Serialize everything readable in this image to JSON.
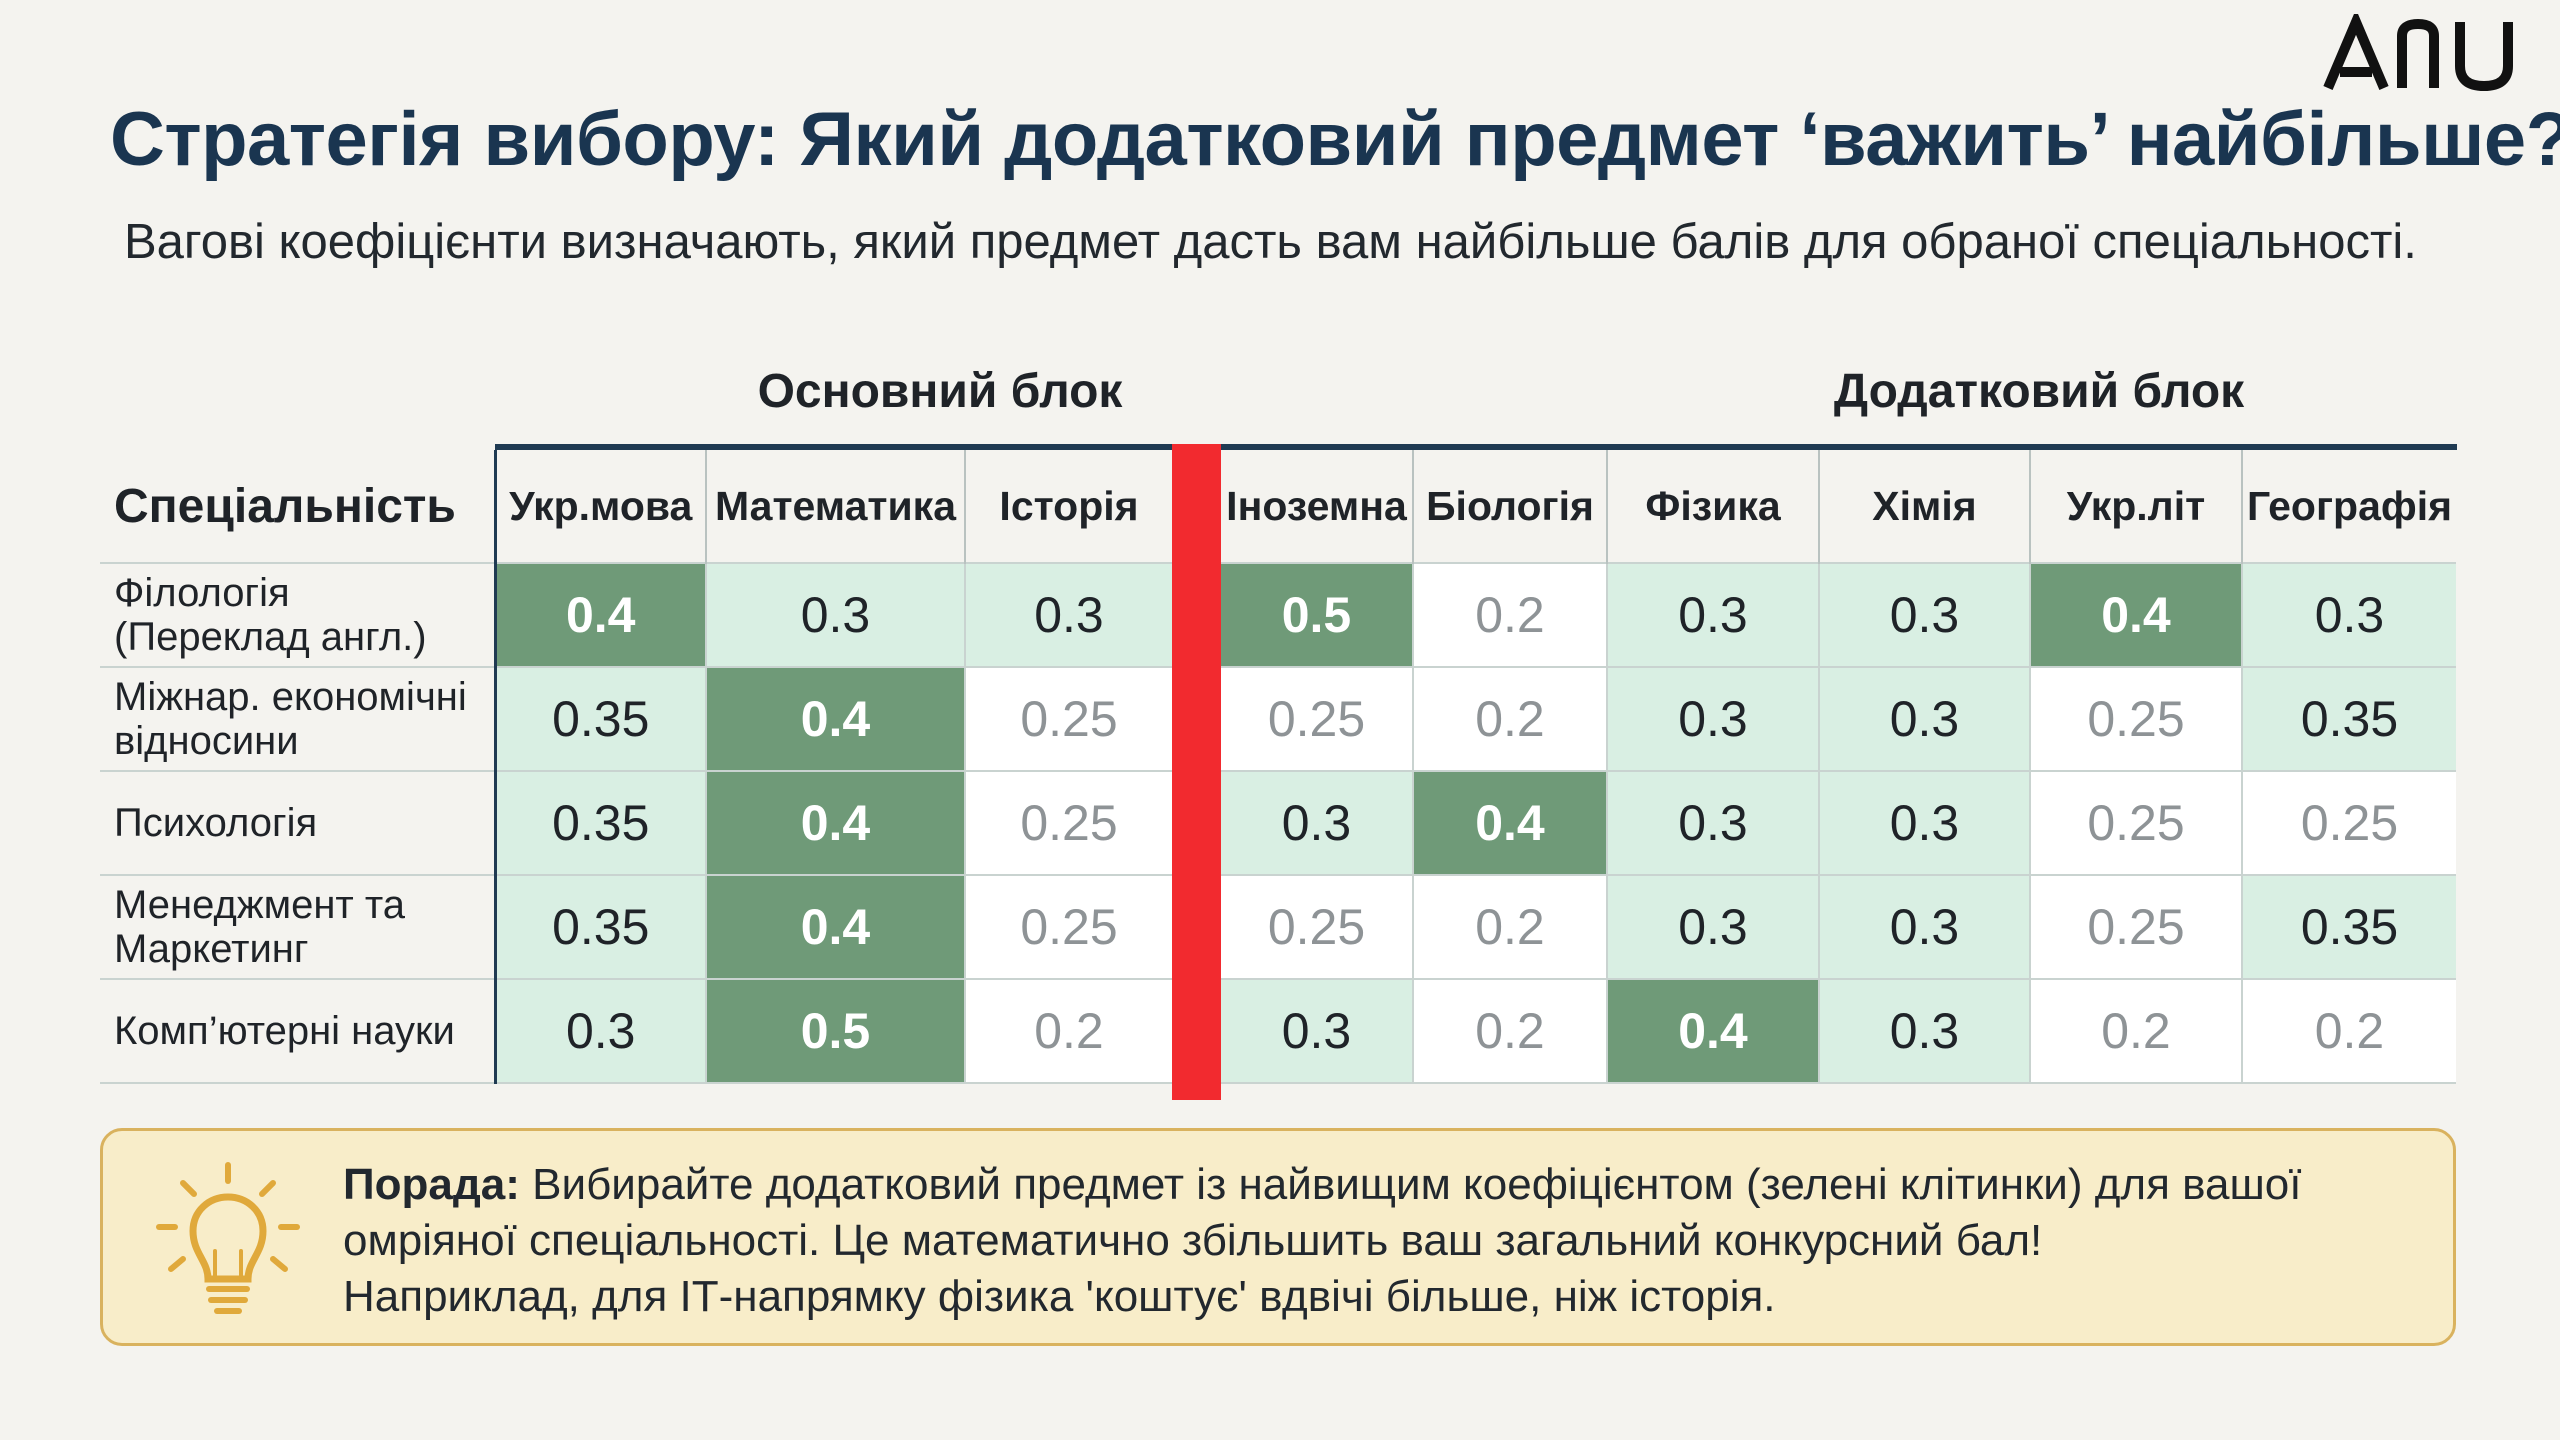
{
  "logo": {
    "text": "ANU"
  },
  "title": "Стратегія вибору: Який додатковий предмет ‘важить’ найбільше?",
  "subtitle": "Вагові коефіцієнти визначають, який предмет дасть вам найбільше балів для обраної спеціальності.",
  "blocks": {
    "main": "Основний блок",
    "extra": "Додатковий блок"
  },
  "table": {
    "spec_header": "Спеціальність",
    "main_columns": [
      "Укр.мова",
      "Математика",
      "Історія"
    ],
    "extra_columns": [
      "Іноземна",
      "Біологія",
      "Фізика",
      "Хімія",
      "Укр.літ",
      "Географія"
    ],
    "rows": [
      {
        "name_lines": [
          "Філологія",
          "(Переклад англ.)"
        ],
        "main": [
          "0.4",
          "0.3",
          "0.3"
        ],
        "extra": [
          "0.5",
          "0.2",
          "0.3",
          "0.3",
          "0.4",
          "0.3"
        ]
      },
      {
        "name_lines": [
          "Міжнар. економічні",
          "відносини"
        ],
        "main": [
          "0.35",
          "0.4",
          "0.25"
        ],
        "extra": [
          "0.25",
          "0.2",
          "0.3",
          "0.3",
          "0.25",
          "0.35"
        ]
      },
      {
        "name_lines": [
          "Психологія",
          ""
        ],
        "main": [
          "0.35",
          "0.4",
          "0.25"
        ],
        "extra": [
          "0.3",
          "0.4",
          "0.3",
          "0.3",
          "0.25",
          "0.25"
        ]
      },
      {
        "name_lines": [
          "Менеджмент та",
          "Маркетинг"
        ],
        "main": [
          "0.35",
          "0.4",
          "0.25"
        ],
        "extra": [
          "0.25",
          "0.2",
          "0.3",
          "0.3",
          "0.25",
          "0.35"
        ]
      },
      {
        "name_lines": [
          "Комп’ютерні науки",
          ""
        ],
        "main": [
          "0.3",
          "0.5",
          "0.2"
        ],
        "extra": [
          "0.3",
          "0.2",
          "0.4",
          "0.3",
          "0.2",
          "0.2"
        ]
      }
    ],
    "colors": {
      "dark": "#6f9a78",
      "mint": "#d9efe3",
      "white": "#ffffff",
      "divider": "#f22a2f",
      "header_rule": "#1f3a52"
    }
  },
  "tip": {
    "label": "Порада:",
    "line1": "Вибирайте додатковий предмет із найвищим коефіцієнтом (зелені клітинки) для вашої",
    "line2": "омріяної спеціальності. Це математично збільшить ваш загальний конкурсний бал!",
    "line3": "Наприклад, для ІТ-напрямку фізика 'коштує' вдвічі більше, ніж історія.",
    "icon": "lightbulb-icon"
  }
}
